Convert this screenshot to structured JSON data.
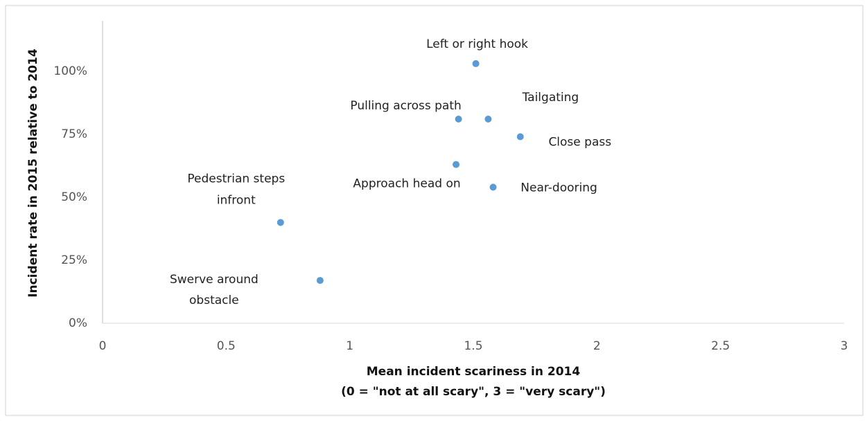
{
  "chart_data": {
    "type": "scatter",
    "x_label": [
      "Mean incident scariness in 2014",
      "(0 = \"not at all scary\", 3 = \"very scary\")"
    ],
    "y_label": "Incident rate in 2015 relative to 2014",
    "color": "#5b9bd5",
    "points": [
      {
        "label": [
          "Left or right hook"
        ],
        "x": 1.51,
        "y": 103
      },
      {
        "label": [
          "Pulling across path"
        ],
        "x": 1.44,
        "y": 81
      },
      {
        "label": [
          "Tailgating"
        ],
        "x": 1.56,
        "y": 81
      },
      {
        "label": [
          "Close pass"
        ],
        "x": 1.69,
        "y": 74
      },
      {
        "label": [
          "Approach head on"
        ],
        "x": 1.43,
        "y": 63
      },
      {
        "label": [
          "Near-dooring"
        ],
        "x": 1.58,
        "y": 54
      },
      {
        "label": [
          "Pedestrian steps",
          "infront"
        ],
        "x": 0.72,
        "y": 40
      },
      {
        "label": [
          "Swerve around",
          "obstacle"
        ],
        "x": 0.88,
        "y": 17
      }
    ],
    "xlim": [
      0,
      3
    ],
    "xticks": [
      0,
      0.5,
      1,
      1.5,
      2,
      2.5,
      3
    ],
    "ylim": [
      0,
      120
    ],
    "yticks": [
      {
        "value": 0,
        "label": "0%"
      },
      {
        "value": 25,
        "label": "25%"
      },
      {
        "value": 50,
        "label": "50%"
      },
      {
        "value": 75,
        "label": "75%"
      },
      {
        "value": 100,
        "label": "100%"
      }
    ],
    "grid": false
  }
}
